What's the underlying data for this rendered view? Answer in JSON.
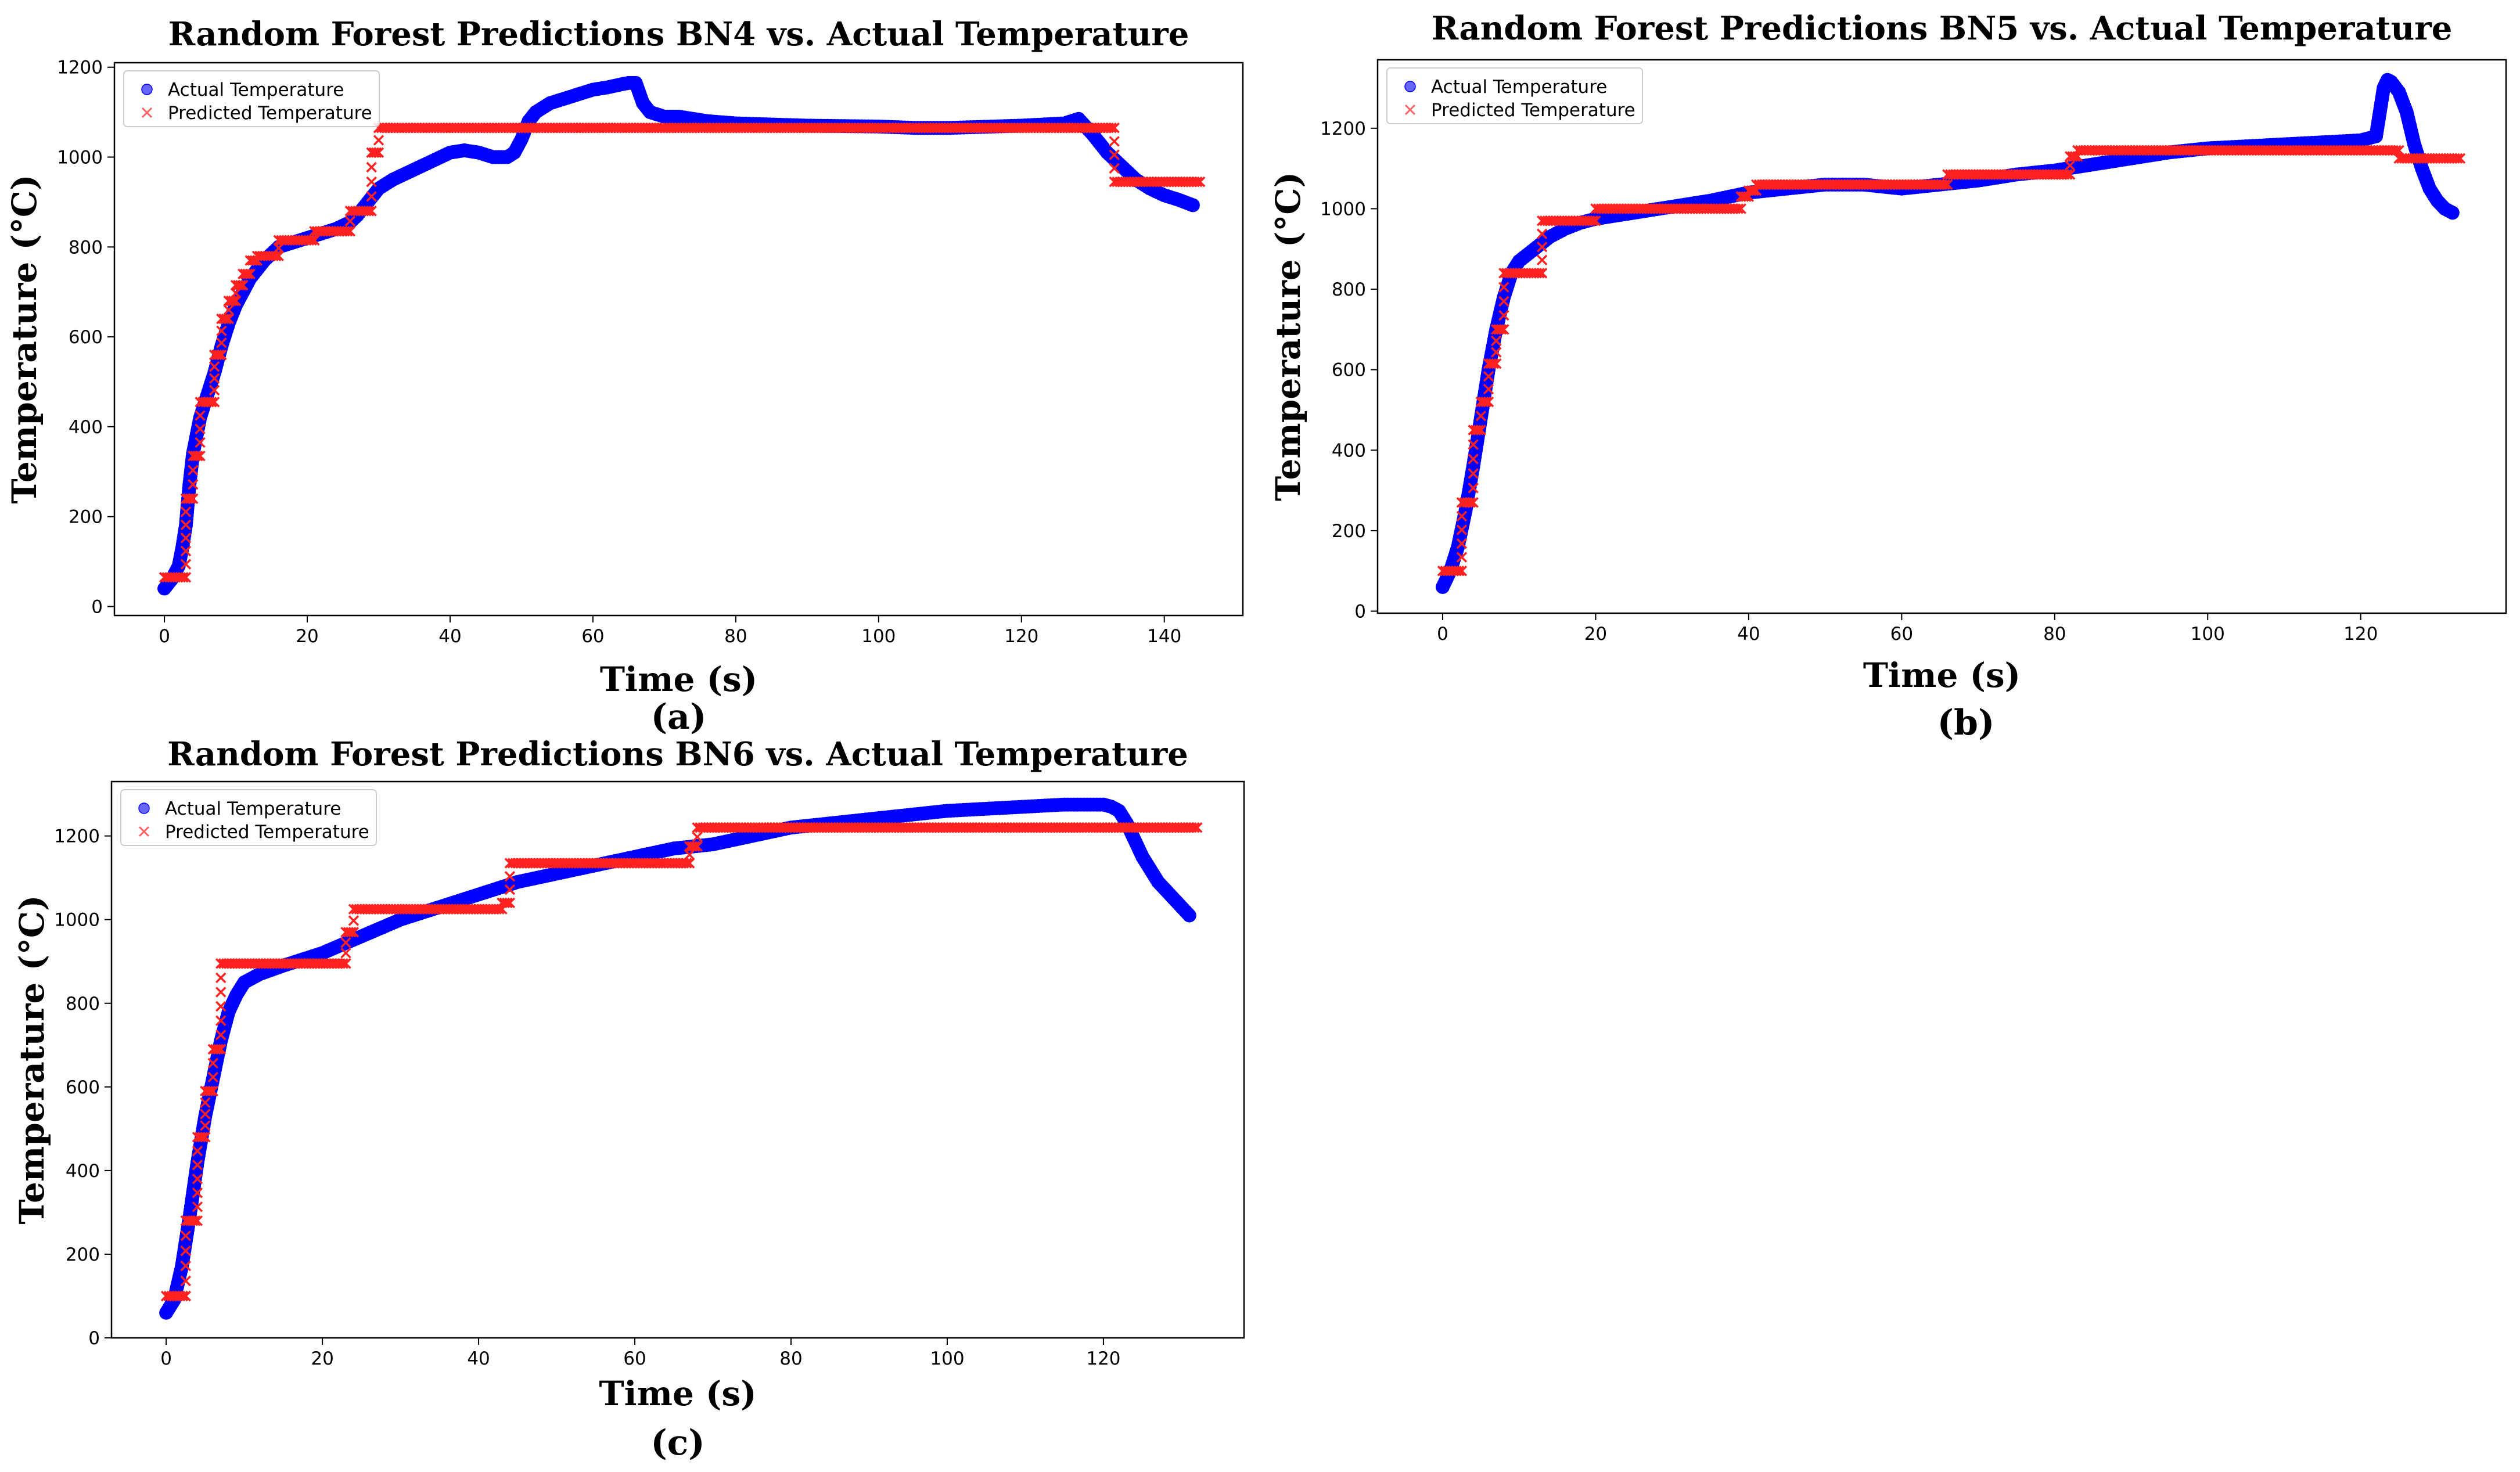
{
  "colors": {
    "actual": "#0000ff",
    "predicted": "#ff2020"
  },
  "chart_data": [
    {
      "id": "a",
      "type": "scatter",
      "title": "Random Forest Predictions BN4 vs. Actual Temperature",
      "xlabel": "Time (s)",
      "ylabel": "Temperature (°C)",
      "subfigure_label": "(a)",
      "xlim": [
        -7,
        151
      ],
      "ylim": [
        -20,
        1210
      ],
      "xticks": [
        0,
        20,
        40,
        60,
        80,
        100,
        120,
        140
      ],
      "yticks": [
        0,
        200,
        400,
        600,
        800,
        1000,
        1200
      ],
      "legend": {
        "position": "upper left",
        "entries": [
          "Actual Temperature",
          "Predicted Temperature"
        ]
      },
      "series": [
        {
          "name": "Actual Temperature",
          "marker": "circle",
          "x": [
            0,
            1,
            2,
            2.5,
            3,
            3.5,
            4,
            5,
            6,
            7,
            8,
            9,
            10,
            11,
            12,
            14,
            16,
            18,
            20,
            22,
            24,
            26,
            27,
            28,
            29,
            30,
            32,
            34,
            36,
            38,
            40,
            42,
            44,
            46,
            48,
            49,
            50,
            51,
            52,
            54,
            56,
            58,
            60,
            62,
            64,
            65,
            66,
            67,
            68,
            70,
            72,
            74,
            76,
            80,
            90,
            100,
            105,
            110,
            120,
            126,
            128,
            130,
            132,
            134,
            136,
            138,
            140,
            142,
            144
          ],
          "y": [
            40,
            60,
            90,
            130,
            180,
            270,
            340,
            420,
            470,
            520,
            580,
            630,
            670,
            700,
            730,
            770,
            800,
            810,
            820,
            830,
            840,
            855,
            870,
            890,
            910,
            930,
            950,
            965,
            980,
            995,
            1010,
            1015,
            1010,
            1000,
            1000,
            1010,
            1040,
            1080,
            1100,
            1120,
            1130,
            1140,
            1150,
            1155,
            1162,
            1165,
            1165,
            1120,
            1100,
            1090,
            1090,
            1085,
            1080,
            1075,
            1070,
            1068,
            1065,
            1065,
            1070,
            1075,
            1085,
            1050,
            1010,
            980,
            950,
            930,
            915,
            905,
            893
          ]
        },
        {
          "name": "Predicted Temperature",
          "marker": "x",
          "x": [
            0,
            3,
            3,
            4,
            4,
            5,
            5,
            7,
            7,
            8,
            8,
            9,
            9,
            10,
            10,
            11,
            11,
            12,
            12,
            13,
            13,
            16,
            16,
            21,
            21,
            26,
            26,
            29,
            29,
            30,
            30,
            133,
            133,
            145
          ],
          "y": [
            65,
            65,
            240,
            240,
            335,
            335,
            455,
            455,
            560,
            560,
            640,
            640,
            680,
            680,
            715,
            715,
            740,
            740,
            770,
            770,
            780,
            780,
            815,
            815,
            835,
            835,
            880,
            880,
            1010,
            1010,
            1065,
            1065,
            945,
            945
          ]
        }
      ]
    },
    {
      "id": "b",
      "type": "scatter",
      "title": "Random Forest Predictions BN5 vs. Actual Temperature",
      "xlabel": "Time (s)",
      "ylabel": "Temperature (°C)",
      "subfigure_label": "(b)",
      "xlim": [
        -8.5,
        139
      ],
      "ylim": [
        -5,
        1370
      ],
      "xticks": [
        0,
        20,
        40,
        60,
        80,
        100,
        120
      ],
      "yticks": [
        0,
        200,
        400,
        600,
        800,
        1000,
        1200
      ],
      "legend": {
        "position": "upper left",
        "entries": [
          "Actual Temperature",
          "Predicted Temperature"
        ]
      },
      "series": [
        {
          "name": "Actual Temperature",
          "marker": "circle",
          "x": [
            0,
            1,
            2,
            3,
            4,
            5,
            6,
            7,
            8,
            9,
            10,
            12,
            14,
            16,
            18,
            20,
            25,
            30,
            35,
            40,
            45,
            50,
            55,
            60,
            65,
            70,
            75,
            80,
            85,
            90,
            95,
            100,
            105,
            110,
            115,
            120,
            122,
            122.5,
            123,
            123.5,
            124,
            125,
            126,
            127,
            128,
            129,
            130,
            131,
            132
          ],
          "y": [
            60,
            100,
            160,
            250,
            360,
            480,
            600,
            700,
            780,
            840,
            870,
            900,
            930,
            950,
            965,
            975,
            990,
            1005,
            1020,
            1040,
            1050,
            1060,
            1060,
            1050,
            1060,
            1070,
            1085,
            1095,
            1110,
            1125,
            1140,
            1150,
            1155,
            1160,
            1165,
            1170,
            1180,
            1240,
            1300,
            1320,
            1315,
            1290,
            1240,
            1160,
            1100,
            1050,
            1020,
            1000,
            990
          ]
        },
        {
          "name": "Predicted Temperature",
          "marker": "x",
          "x": [
            0,
            2.5,
            2.5,
            4,
            4,
            5,
            5,
            6,
            6,
            7,
            7,
            8,
            8,
            13,
            13,
            20,
            20,
            39,
            39,
            40,
            40,
            41,
            41,
            66,
            66,
            82,
            82,
            83,
            83,
            125,
            125,
            133
          ],
          "y": [
            100,
            100,
            270,
            270,
            450,
            450,
            520,
            520,
            615,
            615,
            700,
            700,
            840,
            840,
            970,
            970,
            1000,
            1000,
            1030,
            1030,
            1045,
            1045,
            1060,
            1060,
            1085,
            1085,
            1130,
            1130,
            1145,
            1145,
            1125,
            1125
          ]
        }
      ]
    },
    {
      "id": "c",
      "type": "scatter",
      "title": "Random Forest Predictions BN6 vs. Actual Temperature",
      "xlabel": "Time (s)",
      "ylabel": "Temperature (°C)",
      "subfigure_label": "(c)",
      "xlim": [
        -7,
        138
      ],
      "ylim": [
        0,
        1330
      ],
      "xticks": [
        0,
        20,
        40,
        60,
        80,
        100,
        120
      ],
      "yticks": [
        0,
        200,
        400,
        600,
        800,
        1000,
        1200
      ],
      "legend": {
        "position": "upper left",
        "entries": [
          "Actual Temperature",
          "Predicted Temperature"
        ]
      },
      "series": [
        {
          "name": "Actual Temperature",
          "marker": "circle",
          "x": [
            0,
            1,
            2,
            3,
            4,
            5,
            6,
            7,
            8,
            9,
            10,
            12,
            15,
            20,
            25,
            30,
            35,
            40,
            45,
            50,
            55,
            60,
            65,
            70,
            75,
            80,
            85,
            90,
            95,
            100,
            105,
            110,
            115,
            120,
            121,
            122,
            123,
            124,
            125,
            126,
            127,
            128,
            129,
            130,
            131
          ],
          "y": [
            60,
            90,
            170,
            290,
            420,
            530,
            620,
            710,
            780,
            820,
            850,
            870,
            890,
            920,
            960,
            1000,
            1030,
            1060,
            1090,
            1110,
            1130,
            1150,
            1170,
            1180,
            1200,
            1220,
            1230,
            1240,
            1250,
            1260,
            1265,
            1270,
            1275,
            1275,
            1270,
            1260,
            1230,
            1190,
            1150,
            1120,
            1090,
            1070,
            1050,
            1030,
            1010
          ]
        },
        {
          "name": "Predicted Temperature",
          "marker": "x",
          "x": [
            0,
            2.5,
            2.5,
            4,
            4,
            5,
            5,
            6,
            6,
            7,
            7,
            23,
            23,
            24,
            24,
            43,
            43,
            44,
            44,
            67,
            67,
            68,
            68,
            132
          ],
          "y": [
            100,
            100,
            280,
            280,
            480,
            480,
            590,
            590,
            690,
            690,
            895,
            895,
            970,
            970,
            1025,
            1025,
            1040,
            1040,
            1135,
            1135,
            1175,
            1175,
            1220,
            1220
          ]
        }
      ]
    }
  ]
}
